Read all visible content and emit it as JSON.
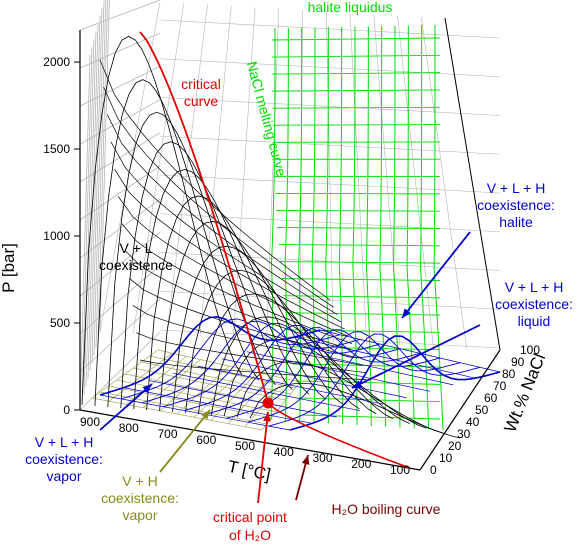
{
  "colors": {
    "black": "#000000",
    "critical": "#e00000",
    "halite": "#00dd00",
    "coexistence": "#0000cc",
    "vh": "#8a8a1a",
    "boiling": "#7a0000",
    "grid": "#b4b4b4"
  },
  "axes": {
    "p_title": "P [bar]",
    "t_title": "T [°C]",
    "x_title": "Wt.% NaCl",
    "p_ticks": [
      "0",
      "500",
      "1000",
      "1500",
      "2000"
    ],
    "t_ticks": [
      "900",
      "800",
      "700",
      "600",
      "500",
      "400",
      "300",
      "200",
      "100"
    ],
    "x_ticks": [
      "0",
      "10",
      "20",
      "30",
      "40",
      "50",
      "60",
      "70",
      "80",
      "90",
      "100"
    ]
  },
  "labels": {
    "halite_liquidus": "halite liquidus",
    "nacl_melting": "NaCl melting curve",
    "critical_curve": [
      "critical",
      "curve"
    ],
    "vl_coexistence": [
      "V + L",
      "coexistence"
    ],
    "vlh_halite": [
      "V + L + H",
      "coexistence:",
      "halite"
    ],
    "vlh_liquid": [
      "V + L + H",
      "coexistence:",
      "liquid"
    ],
    "vlh_vapor": [
      "V + L + H",
      "coexistence:",
      "vapor"
    ],
    "vh_vapor": [
      "V + H",
      "coexistence:",
      "vapor"
    ],
    "critical_point": [
      "critical point",
      "of H₂O"
    ],
    "boiling_curve": "H₂O boiling curve"
  }
}
